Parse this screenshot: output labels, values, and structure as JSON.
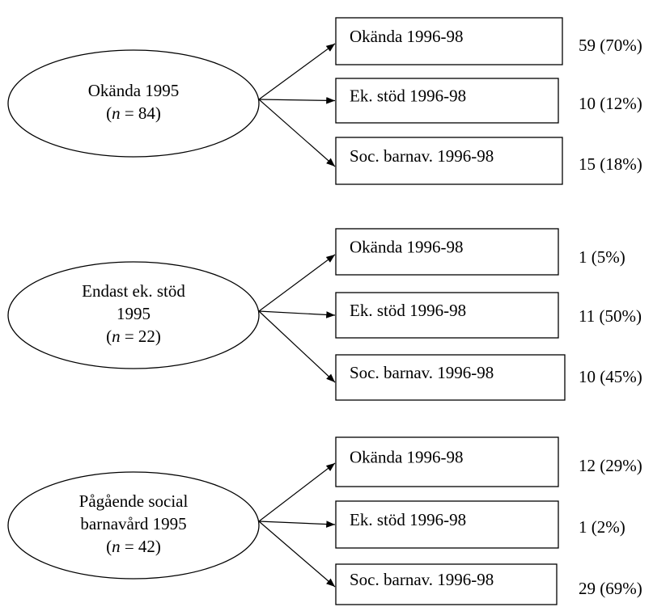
{
  "groups": [
    {
      "source": {
        "lines": [
          "Okända 1995"
        ],
        "n": {
          "open": "(",
          "var": "n",
          "rest": " = 84)"
        }
      },
      "targets": [
        {
          "label": "Okända 1996-98",
          "outcome": "59 (70%)"
        },
        {
          "label": "Ek. stöd 1996-98",
          "outcome": "10 (12%)"
        },
        {
          "label": "Soc. barnav. 1996-98",
          "outcome": "15 (18%)"
        }
      ]
    },
    {
      "source": {
        "lines": [
          "Endast ek. stöd",
          "1995"
        ],
        "n": {
          "open": "(",
          "var": "n",
          "rest": " = 22)"
        }
      },
      "targets": [
        {
          "label": "Okända 1996-98",
          "outcome": "1 (5%)"
        },
        {
          "label": "Ek. stöd 1996-98",
          "outcome": "11 (50%)"
        },
        {
          "label": "Soc. barnav. 1996-98",
          "outcome": "10 (45%)"
        }
      ]
    },
    {
      "source": {
        "lines": [
          "Pågående social",
          "barnavård 1995"
        ],
        "n": {
          "open": "(",
          "var": "n",
          "rest": " = 42)"
        }
      },
      "targets": [
        {
          "label": "Okända 1996-98",
          "outcome": "12 (29%)"
        },
        {
          "label": "Ek. stöd 1996-98",
          "outcome": "1 (2%)"
        },
        {
          "label": "Soc. barnav. 1996-98",
          "outcome": "29 (69%)"
        }
      ]
    }
  ]
}
